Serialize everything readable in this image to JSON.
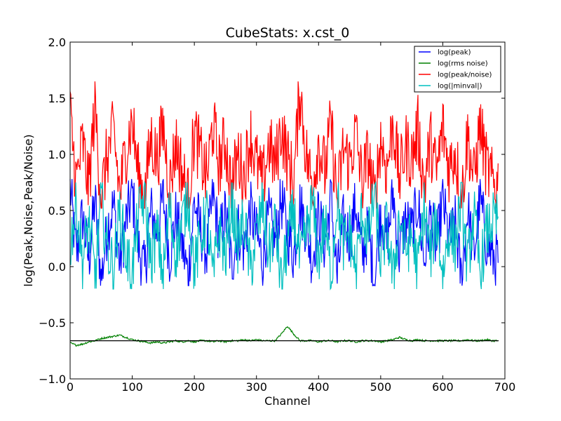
{
  "chart_data": {
    "type": "line",
    "title": "CubeStats: x.cst_0",
    "xlabel": "Channel",
    "ylabel": "log(Peak,Noise,Peak/Noise)",
    "xlim": [
      0,
      700
    ],
    "ylim": [
      -1.0,
      2.0
    ],
    "xticks": [
      "0",
      "100",
      "200",
      "300",
      "400",
      "500",
      "600",
      "700"
    ],
    "yticks": [
      "2.0",
      "1.5",
      "1.0",
      "0.5",
      "0.0",
      "−0.5",
      "−1.0"
    ],
    "grid": false,
    "legend_position": "top-right",
    "n_channels": 690,
    "series": [
      {
        "name": "log(peak)",
        "color": "#0000ff",
        "envelope": {
          "min": -0.17,
          "max": 0.78,
          "mean": 0.25
        },
        "samples_every_10_channels": [
          0.71,
          0.1,
          0.45,
          0.05,
          0.6,
          -0.12,
          0.35,
          0.55,
          0.02,
          0.4,
          0.66,
          0.18,
          -0.05,
          0.5,
          0.3,
          0.62,
          0.08,
          0.44,
          0.2,
          -0.08,
          0.58,
          0.33,
          0.12,
          0.64,
          0.25,
          0.48,
          0.0,
          0.36,
          0.15,
          0.52,
          0.28,
          0.06,
          0.45,
          0.22,
          0.6,
          0.3,
          0.1,
          0.55,
          0.35,
          0.05,
          0.48,
          0.18,
          0.62,
          -0.1,
          0.4,
          0.26,
          0.56,
          0.08,
          0.34,
          -0.14,
          0.5,
          0.2,
          0.65,
          0.12,
          0.42,
          0.3,
          0.58,
          0.04,
          0.46,
          0.16,
          0.6,
          0.22,
          0.38,
          -0.12,
          0.52,
          0.1,
          0.6,
          0.24,
          0.08
        ]
      },
      {
        "name": "log(rms noise)",
        "color": "#008000",
        "envelope": {
          "min": -0.71,
          "max": -0.53,
          "mean": -0.66
        },
        "samples_every_10_channels": [
          -0.68,
          -0.7,
          -0.69,
          -0.67,
          -0.66,
          -0.64,
          -0.63,
          -0.62,
          -0.61,
          -0.63,
          -0.65,
          -0.66,
          -0.67,
          -0.68,
          -0.67,
          -0.68,
          -0.67,
          -0.66,
          -0.67,
          -0.66,
          -0.67,
          -0.66,
          -0.66,
          -0.67,
          -0.66,
          -0.67,
          -0.66,
          -0.66,
          -0.65,
          -0.66,
          -0.65,
          -0.66,
          -0.66,
          -0.66,
          -0.6,
          -0.53,
          -0.6,
          -0.66,
          -0.66,
          -0.66,
          -0.67,
          -0.66,
          -0.66,
          -0.67,
          -0.66,
          -0.66,
          -0.67,
          -0.66,
          -0.66,
          -0.66,
          -0.67,
          -0.66,
          -0.65,
          -0.63,
          -0.65,
          -0.66,
          -0.65,
          -0.66,
          -0.66,
          -0.66,
          -0.66,
          -0.66,
          -0.66,
          -0.66,
          -0.65,
          -0.66,
          -0.66,
          -0.65,
          -0.66
        ]
      },
      {
        "name": "log(peak/noise)",
        "color": "#ff0000",
        "envelope": {
          "min": 0.52,
          "max": 1.65,
          "mean": 0.95
        },
        "samples_every_10_channels": [
          1.35,
          0.75,
          1.1,
          0.7,
          1.45,
          0.6,
          1.0,
          1.2,
          0.65,
          1.05,
          1.3,
          0.8,
          0.62,
          1.15,
          0.95,
          1.25,
          0.7,
          1.1,
          0.85,
          0.6,
          1.2,
          0.98,
          0.78,
          1.28,
          0.9,
          1.12,
          0.68,
          1.0,
          0.8,
          1.18,
          0.92,
          0.72,
          1.1,
          0.88,
          1.25,
          0.95,
          0.76,
          1.6,
          1.0,
          0.72,
          1.12,
          0.84,
          1.26,
          0.58,
          1.06,
          0.92,
          1.2,
          0.74,
          1.0,
          0.56,
          1.15,
          0.86,
          1.3,
          0.78,
          1.08,
          0.96,
          1.22,
          0.7,
          1.12,
          0.82,
          1.24,
          0.88,
          1.04,
          0.58,
          1.18,
          0.76,
          1.26,
          0.9,
          0.74
        ]
      },
      {
        "name": "log(|minval|)",
        "color": "#00bfbf",
        "envelope": {
          "min": -0.2,
          "max": 0.75,
          "mean": 0.2
        },
        "samples_every_10_channels": [
          0.2,
          0.55,
          0.05,
          0.4,
          -0.1,
          0.6,
          0.15,
          0.0,
          0.5,
          0.1,
          -0.05,
          0.45,
          0.62,
          0.05,
          0.3,
          -0.08,
          0.52,
          0.12,
          0.38,
          0.64,
          -0.02,
          0.25,
          0.48,
          -0.12,
          0.35,
          0.08,
          0.58,
          0.2,
          0.42,
          -0.04,
          0.28,
          0.55,
          0.1,
          0.38,
          -0.15,
          0.22,
          0.5,
          0.02,
          0.3,
          0.58,
          0.06,
          0.4,
          -0.1,
          0.62,
          0.18,
          0.32,
          -0.06,
          0.5,
          0.24,
          0.66,
          0.05,
          0.36,
          -0.12,
          0.46,
          0.14,
          0.28,
          -0.02,
          0.54,
          0.1,
          0.42,
          -0.08,
          0.34,
          0.2,
          0.6,
          0.0,
          0.48,
          -0.06,
          0.3,
          0.4
        ]
      },
      {
        "name": "",
        "color": "#000000",
        "constant": -0.66,
        "x_range": [
          0,
          690
        ]
      }
    ]
  }
}
